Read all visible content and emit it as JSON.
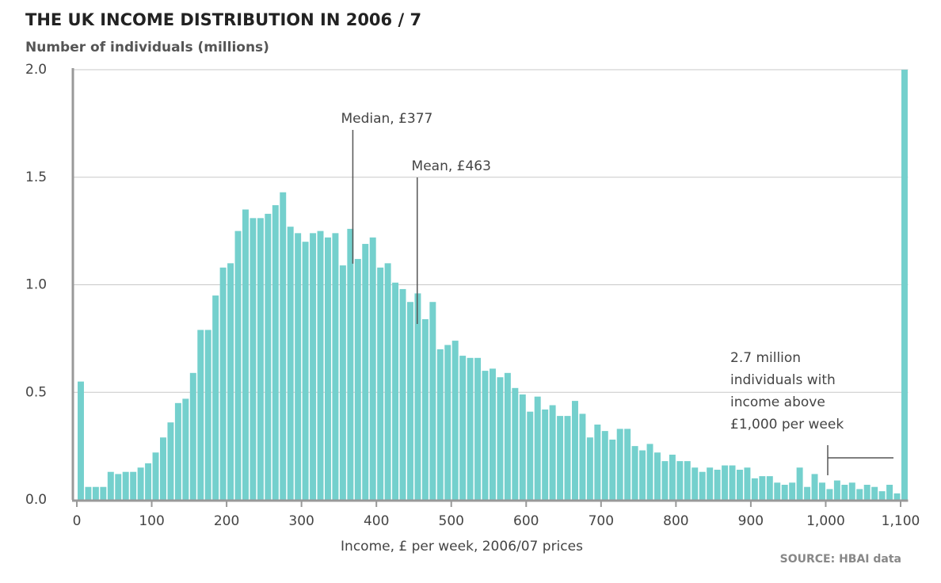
{
  "chart_data": {
    "type": "histogram",
    "title": "THE UK INCOME DISTRIBUTION IN 2006 / 7",
    "y_label": "Number of individuals (millions)",
    "x_label": "Income, £ per week, 2006/07 prices",
    "source": "SOURCE: HBAI data",
    "color": "#74d0cd",
    "grid": true,
    "bins": [
      0,
      10,
      20,
      30,
      40,
      50,
      60,
      70,
      80,
      90,
      100,
      110,
      120,
      130,
      140,
      150,
      160,
      170,
      180,
      190,
      200,
      210,
      220,
      230,
      240,
      250,
      260,
      270,
      280,
      290,
      300,
      310,
      320,
      330,
      340,
      350,
      360,
      370,
      380,
      390,
      400,
      410,
      420,
      430,
      440,
      450,
      460,
      470,
      480,
      490,
      500,
      510,
      520,
      530,
      540,
      550,
      560,
      570,
      580,
      590,
      600,
      610,
      620,
      630,
      640,
      650,
      660,
      670,
      680,
      690,
      700,
      710,
      720,
      730,
      740,
      750,
      760,
      770,
      780,
      790,
      800,
      810,
      820,
      830,
      840,
      850,
      860,
      870,
      880,
      890,
      900,
      910,
      920,
      930,
      940,
      950,
      960,
      970,
      980,
      990,
      1000,
      1010,
      1020,
      1030,
      1040,
      1050,
      1060,
      1070,
      1080,
      1090,
      1100,
      1110
    ],
    "values": [
      0.55,
      0.06,
      0.06,
      0.06,
      0.13,
      0.12,
      0.13,
      0.13,
      0.15,
      0.17,
      0.22,
      0.29,
      0.36,
      0.45,
      0.47,
      0.59,
      0.79,
      0.79,
      0.95,
      1.08,
      1.1,
      1.25,
      1.35,
      1.31,
      1.31,
      1.33,
      1.37,
      1.43,
      1.27,
      1.24,
      1.2,
      1.24,
      1.25,
      1.22,
      1.24,
      1.09,
      1.26,
      1.12,
      1.19,
      1.22,
      1.08,
      1.1,
      1.01,
      0.98,
      0.92,
      0.96,
      0.84,
      0.92,
      0.7,
      0.72,
      0.74,
      0.67,
      0.66,
      0.66,
      0.6,
      0.61,
      0.57,
      0.59,
      0.52,
      0.49,
      0.41,
      0.48,
      0.42,
      0.44,
      0.39,
      0.39,
      0.46,
      0.4,
      0.29,
      0.35,
      0.32,
      0.28,
      0.33,
      0.33,
      0.25,
      0.23,
      0.26,
      0.22,
      0.18,
      0.21,
      0.18,
      0.18,
      0.15,
      0.13,
      0.15,
      0.14,
      0.16,
      0.16,
      0.14,
      0.15,
      0.1,
      0.11,
      0.11,
      0.08,
      0.07,
      0.08,
      0.15,
      0.06,
      0.12,
      0.08,
      0.05,
      0.09,
      0.07,
      0.08,
      0.05,
      0.07,
      0.06,
      0.04,
      0.07,
      0.03,
      2.0
    ],
    "xlim": [
      0,
      1110
    ],
    "ylim": [
      0,
      2
    ],
    "xticks": [
      0,
      100,
      200,
      300,
      400,
      500,
      600,
      700,
      800,
      900,
      {
        "value": 1000,
        "label": "1,000"
      },
      {
        "value": 1100,
        "label": "1,100"
      }
    ],
    "yticks": [
      {
        "value": 0,
        "label": "0.0"
      },
      0.5,
      {
        "value": 1,
        "label": "1.0"
      },
      1.5,
      {
        "value": 2,
        "label": "2.0"
      }
    ],
    "annotations": [
      {
        "text": "Median, £377",
        "x": 377
      },
      {
        "text": "Mean, £463",
        "x": 463
      },
      {
        "lines": [
          "2.7 million",
          "individuals with",
          "income above",
          "£1,000 per week"
        ]
      }
    ]
  }
}
